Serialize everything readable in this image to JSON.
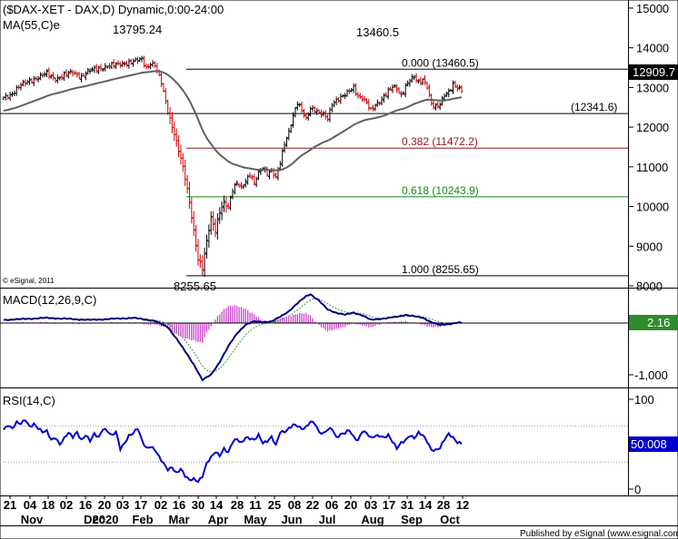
{
  "header": {
    "title": "($DAX-XET - DAX,D) Dynamic,0:00-24:00",
    "ma_label": "MA(55,C)e",
    "copyright": "© eSignal, 2011",
    "footer": "Published by eSignal (www.esignal.com)"
  },
  "colors": {
    "up_bar": "#000000",
    "down_bar": "#cc0000",
    "ma": "#606060",
    "macd": "#00007a",
    "signal": "#3a9a3a",
    "histogram": "#cc44cc",
    "rsi": "#0000cc",
    "fib_0": "#000000",
    "fib_382": "#8b1a1a",
    "fib_618": "#138a13"
  },
  "chart_data": [
    {
      "type": "candlestick",
      "panel": "price",
      "y_ticks": [
        15000,
        14000,
        13000,
        12000,
        11000,
        10000,
        9000,
        8000
      ],
      "y_tick_labels": [
        "15000",
        "14000",
        "13000",
        "12000",
        "11000",
        "10000",
        "9000",
        "8000"
      ],
      "ylim": [
        8000,
        15000
      ],
      "x_tick_labels": [
        "21",
        "04",
        "18",
        "02",
        "16",
        "20",
        "03",
        "17",
        "02",
        "16",
        "30",
        "14",
        "28",
        "11",
        "25",
        "08",
        "22",
        "06",
        "20",
        "03",
        "17",
        "31",
        "14",
        "28",
        "12"
      ],
      "month_labels": [
        "Nov",
        "Dec",
        "2020",
        "Feb",
        "Mar",
        "Apr",
        "May",
        "Jun",
        "Jul",
        "Aug",
        "Sep",
        "Oct"
      ],
      "last_price": "12909.7",
      "peak_labels": {
        "high": "13795.24",
        "low": "8255.65",
        "recent_high": "13460.5"
      },
      "levels": [
        {
          "ratio": "0.000",
          "value": 13460.5,
          "label": "0.000 (13460.5)"
        },
        {
          "ratio": "support",
          "value": 12341.6,
          "label": "(12341.6)"
        },
        {
          "ratio": "0.382",
          "value": 11472.2,
          "label": "0.382 (11472.2)"
        },
        {
          "ratio": "0.618",
          "value": 10243.9,
          "label": "0.618 (10243.9)"
        },
        {
          "ratio": "1.000",
          "value": 8255.65,
          "label": "1.000 (8255.65)"
        }
      ],
      "anchors": [
        [
          0,
          12750
        ],
        [
          4,
          12850
        ],
        [
          8,
          13050
        ],
        [
          12,
          13180
        ],
        [
          16,
          13250
        ],
        [
          20,
          13350
        ],
        [
          24,
          13220
        ],
        [
          28,
          13300
        ],
        [
          32,
          13380
        ],
        [
          36,
          13280
        ],
        [
          40,
          13420
        ],
        [
          44,
          13480
        ],
        [
          48,
          13540
        ],
        [
          52,
          13560
        ],
        [
          56,
          13620
        ],
        [
          60,
          13650
        ],
        [
          64,
          13700
        ],
        [
          66,
          13500
        ],
        [
          68,
          13620
        ],
        [
          70,
          13570
        ],
        [
          73,
          13100
        ],
        [
          76,
          12400
        ],
        [
          79,
          11850
        ],
        [
          82,
          11200
        ],
        [
          84,
          10700
        ],
        [
          86,
          10100
        ],
        [
          88,
          9400
        ],
        [
          90,
          8700
        ],
        [
          92,
          8441
        ],
        [
          94,
          9100
        ],
        [
          96,
          9700
        ],
        [
          98,
          9400
        ],
        [
          100,
          9900
        ],
        [
          102,
          10100
        ],
        [
          104,
          9950
        ],
        [
          106,
          10400
        ],
        [
          108,
          10600
        ],
        [
          110,
          10500
        ],
        [
          112,
          10650
        ],
        [
          114,
          10800
        ],
        [
          116,
          10550
        ],
        [
          118,
          10850
        ],
        [
          120,
          11000
        ],
        [
          122,
          10850
        ],
        [
          124,
          10900
        ],
        [
          126,
          10700
        ],
        [
          128,
          11100
        ],
        [
          130,
          11600
        ],
        [
          132,
          11900
        ],
        [
          134,
          12300
        ],
        [
          136,
          12600
        ],
        [
          138,
          12400
        ],
        [
          140,
          12200
        ],
        [
          142,
          12500
        ],
        [
          144,
          12450
        ],
        [
          146,
          12350
        ],
        [
          148,
          12300
        ],
        [
          150,
          12200
        ],
        [
          152,
          12600
        ],
        [
          154,
          12700
        ],
        [
          156,
          12750
        ],
        [
          158,
          12800
        ],
        [
          160,
          12900
        ],
        [
          162,
          13000
        ],
        [
          164,
          12800
        ],
        [
          166,
          12750
        ],
        [
          168,
          12600
        ],
        [
          170,
          12400
        ],
        [
          172,
          12550
        ],
        [
          174,
          12650
        ],
        [
          176,
          12800
        ],
        [
          178,
          12900
        ],
        [
          180,
          13000
        ],
        [
          182,
          12950
        ],
        [
          184,
          12800
        ],
        [
          186,
          13050
        ],
        [
          188,
          13200
        ],
        [
          190,
          13250
        ],
        [
          192,
          13100
        ],
        [
          194,
          13200
        ],
        [
          196,
          13050
        ],
        [
          198,
          12600
        ],
        [
          200,
          12500
        ],
        [
          202,
          12550
        ],
        [
          204,
          12800
        ],
        [
          206,
          12900
        ],
        [
          208,
          13100
        ],
        [
          210,
          13000
        ],
        [
          212,
          12909.7
        ]
      ]
    },
    {
      "type": "line",
      "panel": "macd",
      "title": "MACD(12,26,9,C)",
      "last_value": "2.16",
      "y_tick_labels": [
        "0",
        "-1,000"
      ],
      "y_ticks": [
        0,
        -1000
      ],
      "ylim": [
        -1300,
        600
      ],
      "anchors": [
        [
          0,
          60
        ],
        [
          20,
          100
        ],
        [
          40,
          60
        ],
        [
          60,
          100
        ],
        [
          70,
          40
        ],
        [
          76,
          -80
        ],
        [
          80,
          -300
        ],
        [
          84,
          -550
        ],
        [
          88,
          -800
        ],
        [
          92,
          -1100
        ],
        [
          96,
          -1000
        ],
        [
          100,
          -750
        ],
        [
          104,
          -450
        ],
        [
          108,
          -200
        ],
        [
          112,
          -30
        ],
        [
          116,
          30
        ],
        [
          120,
          20
        ],
        [
          124,
          30
        ],
        [
          128,
          120
        ],
        [
          132,
          230
        ],
        [
          136,
          380
        ],
        [
          140,
          520
        ],
        [
          142,
          560
        ],
        [
          146,
          430
        ],
        [
          150,
          260
        ],
        [
          154,
          200
        ],
        [
          158,
          160
        ],
        [
          162,
          200
        ],
        [
          166,
          150
        ],
        [
          170,
          60
        ],
        [
          174,
          80
        ],
        [
          178,
          100
        ],
        [
          182,
          120
        ],
        [
          186,
          160
        ],
        [
          190,
          130
        ],
        [
          194,
          100
        ],
        [
          198,
          20
        ],
        [
          202,
          -40
        ],
        [
          206,
          -20
        ],
        [
          210,
          10
        ],
        [
          212,
          2.16
        ]
      ]
    },
    {
      "type": "line",
      "panel": "rsi",
      "title": "RSI(14,C)",
      "last_value": "50.008",
      "y_ticks": [
        100,
        0
      ],
      "y_tick_labels": [
        "100",
        "0"
      ],
      "ylim": [
        0,
        100
      ],
      "levels": [
        70,
        30
      ],
      "anchors": [
        [
          0,
          66
        ],
        [
          2,
          72
        ],
        [
          4,
          68
        ],
        [
          6,
          74
        ],
        [
          8,
          72
        ],
        [
          10,
          77
        ],
        [
          12,
          70
        ],
        [
          14,
          73
        ],
        [
          16,
          68
        ],
        [
          18,
          63
        ],
        [
          20,
          64
        ],
        [
          22,
          55
        ],
        [
          24,
          58
        ],
        [
          26,
          50
        ],
        [
          28,
          56
        ],
        [
          30,
          62
        ],
        [
          32,
          58
        ],
        [
          34,
          64
        ],
        [
          36,
          55
        ],
        [
          38,
          60
        ],
        [
          40,
          53
        ],
        [
          42,
          61
        ],
        [
          44,
          58
        ],
        [
          46,
          68
        ],
        [
          48,
          65
        ],
        [
          50,
          59
        ],
        [
          52,
          63
        ],
        [
          54,
          45
        ],
        [
          56,
          52
        ],
        [
          58,
          60
        ],
        [
          60,
          62
        ],
        [
          62,
          67
        ],
        [
          64,
          54
        ],
        [
          66,
          46
        ],
        [
          68,
          48
        ],
        [
          70,
          44
        ],
        [
          72,
          35
        ],
        [
          74,
          28
        ],
        [
          76,
          22
        ],
        [
          78,
          25
        ],
        [
          80,
          18
        ],
        [
          82,
          22
        ],
        [
          84,
          14
        ],
        [
          86,
          10
        ],
        [
          88,
          12
        ],
        [
          90,
          9
        ],
        [
          92,
          14
        ],
        [
          94,
          28
        ],
        [
          96,
          35
        ],
        [
          98,
          42
        ],
        [
          100,
          38
        ],
        [
          102,
          45
        ],
        [
          104,
          40
        ],
        [
          106,
          52
        ],
        [
          108,
          56
        ],
        [
          110,
          52
        ],
        [
          112,
          58
        ],
        [
          114,
          56
        ],
        [
          116,
          54
        ],
        [
          118,
          60
        ],
        [
          120,
          52
        ],
        [
          122,
          54
        ],
        [
          124,
          58
        ],
        [
          126,
          48
        ],
        [
          128,
          63
        ],
        [
          130,
          64
        ],
        [
          132,
          68
        ],
        [
          134,
          72
        ],
        [
          136,
          70
        ],
        [
          138,
          66
        ],
        [
          140,
          69
        ],
        [
          142,
          76
        ],
        [
          144,
          74
        ],
        [
          146,
          63
        ],
        [
          148,
          61
        ],
        [
          150,
          66
        ],
        [
          152,
          68
        ],
        [
          154,
          58
        ],
        [
          156,
          61
        ],
        [
          158,
          62
        ],
        [
          160,
          65
        ],
        [
          162,
          58
        ],
        [
          164,
          55
        ],
        [
          166,
          65
        ],
        [
          168,
          62
        ],
        [
          170,
          56
        ],
        [
          172,
          59
        ],
        [
          174,
          60
        ],
        [
          176,
          58
        ],
        [
          178,
          60
        ],
        [
          180,
          52
        ],
        [
          182,
          45
        ],
        [
          184,
          52
        ],
        [
          186,
          55
        ],
        [
          188,
          60
        ],
        [
          190,
          56
        ],
        [
          192,
          62
        ],
        [
          194,
          60
        ],
        [
          196,
          54
        ],
        [
          198,
          44
        ],
        [
          200,
          43
        ],
        [
          202,
          45
        ],
        [
          204,
          55
        ],
        [
          206,
          62
        ],
        [
          208,
          58
        ],
        [
          210,
          52
        ],
        [
          212,
          50.008
        ]
      ]
    }
  ]
}
